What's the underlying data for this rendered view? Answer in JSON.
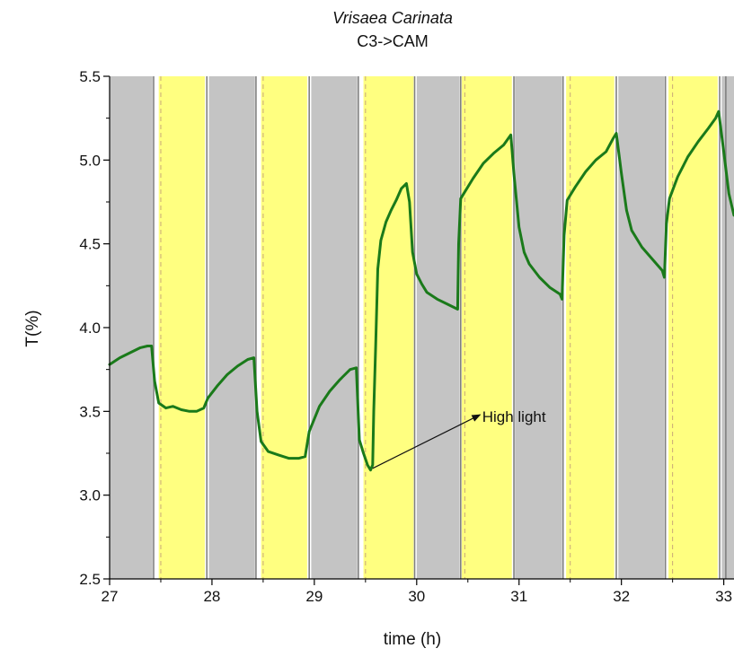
{
  "chart_data": {
    "type": "line",
    "title": "Vrisaea Carinata",
    "subtitle": "C3->CAM",
    "xlabel": "time (h)",
    "ylabel": "T(%)",
    "xlim": [
      27,
      33.1
    ],
    "ylim": [
      2.5,
      5.5
    ],
    "x_ticks": [
      27,
      28,
      29,
      30,
      31,
      32,
      33
    ],
    "x_tick_labels": [
      "27",
      "28",
      "29",
      "30",
      "31",
      "32",
      "33"
    ],
    "y_ticks": [
      2.5,
      3.0,
      3.5,
      4.0,
      4.5,
      5.0,
      5.5
    ],
    "y_tick_labels": [
      "2.5",
      "3.0",
      "3.5",
      "4.0",
      "4.5",
      "5.0",
      "5.5"
    ],
    "grid": false,
    "legend": "none",
    "colors": {
      "dark": "#c4c4c4",
      "light": "#ffff80",
      "line": "#1a7a1a",
      "dark_boundary": "#808080",
      "light_dashed": "#c8a878",
      "axis": "#000000"
    },
    "bands": [
      {
        "kind": "dark",
        "x0": 27.0,
        "x1": 27.42
      },
      {
        "kind": "light",
        "x0": 27.48,
        "x1": 27.93
      },
      {
        "kind": "dark",
        "x0": 27.97,
        "x1": 28.42
      },
      {
        "kind": "light",
        "x0": 28.48,
        "x1": 28.93
      },
      {
        "kind": "dark",
        "x0": 28.97,
        "x1": 29.42
      },
      {
        "kind": "light",
        "x0": 29.48,
        "x1": 29.97
      },
      {
        "kind": "dark",
        "x0": 30.0,
        "x1": 30.42
      },
      {
        "kind": "light",
        "x0": 30.44,
        "x1": 30.93
      },
      {
        "kind": "dark",
        "x0": 30.96,
        "x1": 31.42
      },
      {
        "kind": "light",
        "x0": 31.46,
        "x1": 31.93
      },
      {
        "kind": "dark",
        "x0": 31.97,
        "x1": 32.42
      },
      {
        "kind": "light",
        "x0": 32.46,
        "x1": 32.94
      },
      {
        "kind": "dark",
        "x0": 32.98,
        "x1": 33.1
      }
    ],
    "dark_boundaries": [
      27.43,
      27.95,
      28.43,
      28.95,
      29.43,
      29.98,
      30.43,
      30.95,
      31.43,
      31.95,
      32.43,
      32.96,
      33.02
    ],
    "light_dashed_lines": [
      27.5,
      28.5,
      29.5,
      30.47,
      31.5,
      32.5
    ],
    "series": [
      {
        "x": [
          27.0,
          27.1,
          27.2,
          27.3,
          27.37,
          27.41,
          27.44,
          27.48,
          27.55,
          27.62,
          27.7,
          27.78,
          27.85,
          27.92,
          27.96,
          28.05,
          28.15,
          28.25,
          28.35,
          28.41,
          28.44,
          28.48,
          28.55,
          28.65,
          28.75,
          28.85,
          28.91,
          28.95,
          29.05,
          29.15,
          29.25,
          29.35,
          29.41,
          29.44,
          29.48,
          29.52,
          29.55,
          29.57,
          29.58,
          29.6,
          29.62,
          29.65,
          29.7,
          29.75,
          29.8,
          29.85,
          29.9,
          29.93,
          29.96,
          30.0,
          30.05,
          30.1,
          30.2,
          30.3,
          30.4,
          30.41,
          30.43,
          30.46,
          30.55,
          30.65,
          30.75,
          30.85,
          30.92,
          30.95,
          31.0,
          31.05,
          31.1,
          31.2,
          31.3,
          31.4,
          31.42,
          31.44,
          31.47,
          31.55,
          31.65,
          31.75,
          31.85,
          31.92,
          31.95,
          32.0,
          32.05,
          32.1,
          32.2,
          32.3,
          32.4,
          32.42,
          32.44,
          32.47,
          32.55,
          32.65,
          32.75,
          32.85,
          32.92,
          32.95,
          33.0,
          33.05,
          33.1
        ],
        "y": [
          3.78,
          3.82,
          3.85,
          3.88,
          3.89,
          3.89,
          3.68,
          3.55,
          3.52,
          3.53,
          3.51,
          3.5,
          3.5,
          3.52,
          3.58,
          3.65,
          3.72,
          3.77,
          3.81,
          3.82,
          3.5,
          3.32,
          3.26,
          3.24,
          3.22,
          3.22,
          3.23,
          3.38,
          3.53,
          3.62,
          3.69,
          3.75,
          3.76,
          3.33,
          3.25,
          3.18,
          3.15,
          3.18,
          3.5,
          3.9,
          4.35,
          4.52,
          4.63,
          4.7,
          4.76,
          4.83,
          4.86,
          4.75,
          4.45,
          4.32,
          4.26,
          4.21,
          4.17,
          4.14,
          4.11,
          4.5,
          4.77,
          4.8,
          4.89,
          4.98,
          5.04,
          5.09,
          5.15,
          4.92,
          4.6,
          4.45,
          4.38,
          4.3,
          4.24,
          4.2,
          4.17,
          4.55,
          4.76,
          4.84,
          4.93,
          5.0,
          5.05,
          5.13,
          5.16,
          4.92,
          4.7,
          4.58,
          4.48,
          4.41,
          4.34,
          4.3,
          4.62,
          4.77,
          4.9,
          5.02,
          5.11,
          5.19,
          5.25,
          5.29,
          5.05,
          4.8,
          4.67
        ]
      }
    ],
    "annotation": {
      "text": "High light",
      "arrow_from": [
        29.57,
        3.16
      ],
      "arrow_to": [
        30.62,
        3.48
      ],
      "text_at": [
        30.64,
        3.47
      ]
    }
  }
}
